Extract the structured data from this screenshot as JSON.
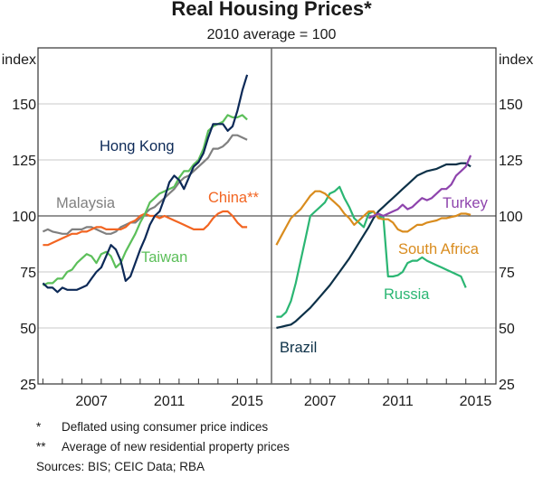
{
  "chart_data": [
    {
      "type": "line",
      "panel": "left",
      "title": "Real Housing Prices*",
      "subtitle": "2010 average = 100",
      "ylabel_left": "index",
      "ylim": [
        25,
        175
      ],
      "xlim": [
        2004.75,
        2016.75
      ],
      "yticks": [
        25,
        50,
        75,
        100,
        125,
        150
      ],
      "ytick_labels": [
        "25",
        "50",
        "75",
        "100",
        "125",
        "150"
      ],
      "xticks": [
        2007,
        2011,
        2015
      ],
      "xtick_labels": [
        "2007",
        "2011",
        "2015"
      ],
      "grid": true,
      "series": [
        {
          "name": "Malaysia",
          "label": "Malaysia",
          "color": "#808080",
          "x": [
            2005.0,
            2005.25,
            2005.5,
            2005.75,
            2006.0,
            2006.25,
            2006.5,
            2006.75,
            2007.0,
            2007.25,
            2007.5,
            2007.75,
            2008.0,
            2008.25,
            2008.5,
            2008.75,
            2009.0,
            2009.25,
            2009.5,
            2009.75,
            2010.0,
            2010.25,
            2010.5,
            2010.75,
            2011.0,
            2011.25,
            2011.5,
            2011.75,
            2012.0,
            2012.25,
            2012.5,
            2012.75,
            2013.0,
            2013.25,
            2013.5,
            2013.75,
            2014.0,
            2014.25,
            2014.5,
            2014.75,
            2015.0,
            2015.25,
            2015.5
          ],
          "y": [
            93,
            94,
            93,
            92.5,
            92,
            92,
            94,
            94,
            94,
            95,
            95,
            94,
            93,
            92,
            92,
            93,
            95,
            96,
            97,
            97,
            99,
            101,
            103,
            104,
            106,
            108,
            110,
            112,
            115,
            117,
            118,
            120,
            122,
            124,
            126,
            130,
            130,
            131,
            133,
            136,
            136,
            135,
            134
          ]
        },
        {
          "name": "China**",
          "label": "China**",
          "color": "#f26522",
          "x": [
            2005.0,
            2005.25,
            2005.5,
            2005.75,
            2006.0,
            2006.25,
            2006.5,
            2006.75,
            2007.0,
            2007.25,
            2007.5,
            2007.75,
            2008.0,
            2008.25,
            2008.5,
            2008.75,
            2009.0,
            2009.25,
            2009.5,
            2009.75,
            2010.0,
            2010.25,
            2010.5,
            2010.75,
            2011.0,
            2011.25,
            2011.5,
            2011.75,
            2012.0,
            2012.25,
            2012.5,
            2012.75,
            2013.0,
            2013.25,
            2013.5,
            2013.75,
            2014.0,
            2014.25,
            2014.5,
            2014.75,
            2015.0,
            2015.25,
            2015.5
          ],
          "y": [
            87,
            87,
            88,
            89,
            90,
            91,
            92,
            92,
            93,
            93,
            94,
            95,
            95,
            94,
            94,
            94,
            94,
            95,
            97,
            98,
            100,
            101,
            100,
            100,
            99,
            100,
            99,
            98,
            97,
            96,
            95,
            94,
            94,
            94,
            96,
            99,
            101,
            102,
            102,
            100,
            97,
            95,
            95
          ]
        },
        {
          "name": "Taiwan",
          "label": "Taiwan",
          "color": "#5cbf5a",
          "x": [
            2005.0,
            2005.25,
            2005.5,
            2005.75,
            2006.0,
            2006.25,
            2006.5,
            2006.75,
            2007.0,
            2007.25,
            2007.5,
            2007.75,
            2008.0,
            2008.25,
            2008.5,
            2008.75,
            2009.0,
            2009.25,
            2009.5,
            2009.75,
            2010.0,
            2010.25,
            2010.5,
            2010.75,
            2011.0,
            2011.25,
            2011.5,
            2011.75,
            2012.0,
            2012.25,
            2012.5,
            2012.75,
            2013.0,
            2013.25,
            2013.5,
            2013.75,
            2014.0,
            2014.25,
            2014.5,
            2014.75,
            2015.0,
            2015.25,
            2015.5
          ],
          "y": [
            69,
            70,
            70,
            72,
            72,
            75,
            76,
            79,
            81,
            83,
            82,
            79,
            83,
            84,
            82,
            77,
            79,
            84,
            88,
            92,
            97,
            101,
            106,
            108,
            110,
            111,
            112,
            113,
            117,
            120,
            120,
            123,
            125,
            130,
            138,
            140,
            141,
            142,
            145,
            144,
            144,
            145,
            143
          ]
        },
        {
          "name": "Hong Kong",
          "label": "Hong Kong",
          "color": "#0c2957",
          "x": [
            2005.0,
            2005.25,
            2005.5,
            2005.75,
            2006.0,
            2006.25,
            2006.5,
            2006.75,
            2007.0,
            2007.25,
            2007.5,
            2007.75,
            2008.0,
            2008.25,
            2008.5,
            2008.75,
            2009.0,
            2009.25,
            2009.5,
            2009.75,
            2010.0,
            2010.25,
            2010.5,
            2010.75,
            2011.0,
            2011.25,
            2011.5,
            2011.75,
            2012.0,
            2012.25,
            2012.5,
            2012.75,
            2013.0,
            2013.25,
            2013.5,
            2013.75,
            2014.0,
            2014.25,
            2014.5,
            2014.75,
            2015.0,
            2015.25,
            2015.5
          ],
          "y": [
            70,
            68,
            68,
            66,
            68,
            67,
            67,
            67,
            68,
            69,
            72,
            75,
            77,
            82,
            87,
            85,
            80,
            71,
            73,
            79,
            85,
            90,
            96,
            100,
            102,
            108,
            115,
            118,
            116,
            112,
            117,
            122,
            124,
            128,
            135,
            141,
            141,
            141,
            138,
            140,
            147,
            156,
            163
          ]
        }
      ]
    },
    {
      "type": "line",
      "panel": "right",
      "ylabel_right": "index",
      "ylim": [
        25,
        175
      ],
      "xlim": [
        2005.0,
        2016.55
      ],
      "yticks": [
        25,
        50,
        75,
        100,
        125,
        150
      ],
      "ytick_labels": [
        "25",
        "50",
        "75",
        "100",
        "125",
        "150"
      ],
      "xticks": [
        2007,
        2011,
        2015
      ],
      "xtick_labels": [
        "2007",
        "2011",
        "2015"
      ],
      "grid": true,
      "series": [
        {
          "name": "Brazil",
          "label": "Brazil",
          "color": "#0d3148",
          "x": [
            2005.25,
            2005.5,
            2005.75,
            2006.0,
            2006.25,
            2006.5,
            2006.75,
            2007.0,
            2007.25,
            2007.5,
            2007.75,
            2008.0,
            2008.25,
            2008.5,
            2008.75,
            2009.0,
            2009.25,
            2009.5,
            2009.75,
            2010.0,
            2010.25,
            2010.5,
            2010.75,
            2011.0,
            2011.25,
            2011.5,
            2011.75,
            2012.0,
            2012.25,
            2012.5,
            2012.75,
            2013.0,
            2013.25,
            2013.5,
            2013.75,
            2014.0,
            2014.25,
            2014.5,
            2014.75,
            2015.0,
            2015.25
          ],
          "y": [
            50,
            50.5,
            51,
            51.5,
            53,
            55,
            57,
            59,
            61.5,
            64,
            66.5,
            69,
            72,
            75,
            78,
            81,
            84.5,
            88,
            91.5,
            95,
            99,
            102,
            104,
            106,
            108,
            110,
            112,
            114,
            116,
            118,
            119,
            120,
            120.5,
            121,
            122,
            123,
            123,
            123,
            123.5,
            123.5,
            122
          ]
        },
        {
          "name": "Russia",
          "label": "Russia",
          "color": "#2bb673",
          "x": [
            2005.25,
            2005.5,
            2005.75,
            2006.0,
            2006.25,
            2006.5,
            2006.75,
            2007.0,
            2007.25,
            2007.5,
            2007.75,
            2008.0,
            2008.25,
            2008.5,
            2008.75,
            2009.0,
            2009.25,
            2009.5,
            2009.75,
            2010.0,
            2010.25,
            2010.5,
            2010.75,
            2011.0,
            2011.25,
            2011.5,
            2011.75,
            2012.0,
            2012.25,
            2012.5,
            2012.75,
            2013.0,
            2013.25,
            2013.5,
            2013.75,
            2014.0,
            2014.25,
            2014.5,
            2014.75,
            2015.0
          ],
          "y": [
            55,
            55,
            57,
            62,
            70,
            80,
            90,
            100,
            102,
            104,
            106,
            110,
            111,
            113,
            108,
            104,
            99,
            97,
            95,
            101,
            102,
            99,
            100,
            73,
            73,
            73.5,
            75,
            79,
            80,
            80,
            81.5,
            80,
            79,
            78,
            77,
            76,
            75,
            74,
            73,
            68
          ]
        },
        {
          "name": "South Africa",
          "label": "South Africa",
          "color": "#d98c1e",
          "x": [
            2005.25,
            2005.5,
            2005.75,
            2006.0,
            2006.25,
            2006.5,
            2006.75,
            2007.0,
            2007.25,
            2007.5,
            2007.75,
            2008.0,
            2008.25,
            2008.5,
            2008.75,
            2009.0,
            2009.25,
            2009.5,
            2009.75,
            2010.0,
            2010.25,
            2010.5,
            2010.75,
            2011.0,
            2011.25,
            2011.5,
            2011.75,
            2012.0,
            2012.25,
            2012.5,
            2012.75,
            2013.0,
            2013.25,
            2013.5,
            2013.75,
            2014.0,
            2014.25,
            2014.5,
            2014.75,
            2015.0,
            2015.25
          ],
          "y": [
            87,
            91,
            95,
            99,
            101,
            103,
            106,
            109,
            111,
            111,
            110,
            108,
            106,
            104,
            101,
            99,
            96,
            98,
            100,
            102,
            102,
            99,
            98.5,
            98.5,
            97,
            94,
            93,
            93,
            94.5,
            96,
            96,
            97,
            97.5,
            98,
            99,
            99,
            99.5,
            100,
            101,
            101,
            100.5
          ]
        },
        {
          "name": "Turkey",
          "label": "Turkey",
          "color": "#8e44ad",
          "x": [
            2010.0,
            2010.25,
            2010.5,
            2010.75,
            2011.0,
            2011.25,
            2011.5,
            2011.75,
            2012.0,
            2012.25,
            2012.5,
            2012.75,
            2013.0,
            2013.25,
            2013.5,
            2013.75,
            2014.0,
            2014.25,
            2014.5,
            2014.75,
            2015.0,
            2015.25
          ],
          "y": [
            99,
            100,
            101,
            100,
            101,
            102,
            103,
            105,
            103,
            104,
            106,
            108,
            107,
            108,
            110,
            112,
            112,
            114,
            118,
            120,
            122,
            127
          ]
        }
      ]
    }
  ],
  "header": {
    "title": "Real Housing Prices*",
    "subtitle": "2010 average = 100"
  },
  "axes": {
    "left_unit": "index",
    "right_unit": "index",
    "y_tick_labels": [
      "25",
      "50",
      "75",
      "100",
      "125",
      "150"
    ],
    "x_tick_labels": [
      "2007",
      "2011",
      "2015"
    ]
  },
  "footnotes": [
    {
      "mark": "*",
      "text": "Deflated using consumer price indices"
    },
    {
      "mark": "**",
      "text": "Average of new residential property prices"
    }
  ],
  "sources": "Sources:  BIS; CEIC Data; RBA"
}
